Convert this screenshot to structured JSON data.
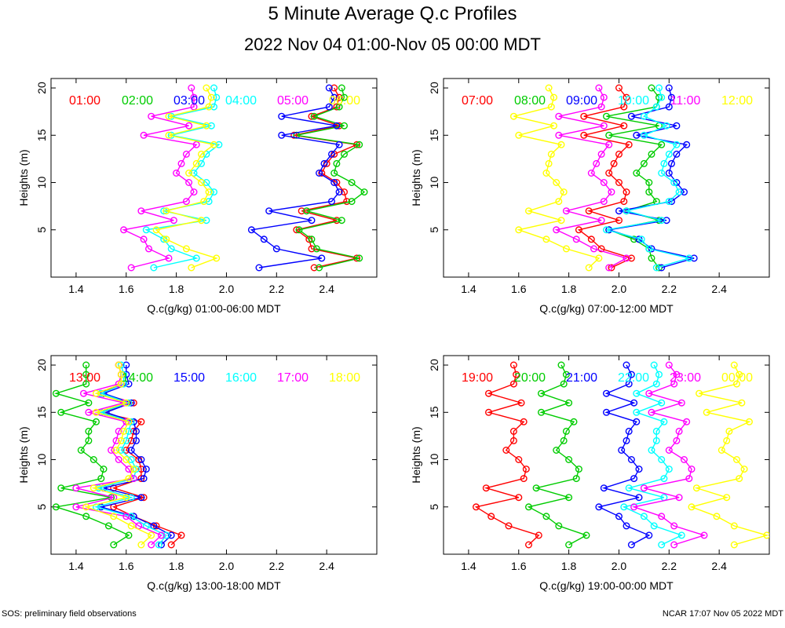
{
  "title": "5 Minute Average Q.c Profiles",
  "subtitle": "2022 Nov 04 01:00-Nov 05 00:00 MDT",
  "footer_left": "SOS: preliminary field observations",
  "footer_right": "NCAR 17:07 Nov 05 2022 MDT",
  "colors": [
    "#ff0000",
    "#00cc00",
    "#0000ff",
    "#00ffff",
    "#ff00ff",
    "#ffff00"
  ],
  "heights": [
    1,
    2,
    3,
    4,
    5,
    6,
    7,
    8,
    9,
    10,
    11,
    12,
    13,
    14,
    15,
    16,
    17,
    18,
    19,
    20
  ],
  "chart_data": [
    {
      "type": "line",
      "xlabel": "Q.c(g/kg) 01:00-06:00 MDT",
      "ylabel": "Heights (m)",
      "xlim": [
        1.3,
        2.6
      ],
      "ylim": [
        0,
        21
      ],
      "xticks": [
        "1.4",
        "1.6",
        "1.8",
        "2.0",
        "2.2",
        "2.4"
      ],
      "yticks": [
        "5",
        "10",
        "15",
        "20"
      ],
      "series": [
        {
          "name": "01:00",
          "values": [
            2.35,
            2.52,
            2.34,
            2.33,
            2.28,
            2.44,
            2.3,
            2.48,
            2.47,
            2.44,
            2.38,
            2.4,
            2.43,
            2.52,
            2.27,
            2.45,
            2.34,
            2.44,
            2.45,
            2.43
          ]
        },
        {
          "name": "02:00",
          "values": [
            2.37,
            2.53,
            2.36,
            2.34,
            2.29,
            2.46,
            2.32,
            2.5,
            2.55,
            2.5,
            2.43,
            2.44,
            2.47,
            2.53,
            2.28,
            2.47,
            2.35,
            2.45,
            2.47,
            2.46
          ]
        },
        {
          "name": "03:00",
          "values": [
            2.13,
            2.38,
            2.2,
            2.15,
            2.1,
            2.34,
            2.17,
            2.42,
            2.45,
            2.43,
            2.37,
            2.39,
            2.42,
            2.45,
            2.22,
            2.44,
            2.22,
            2.41,
            2.43,
            2.41
          ]
        },
        {
          "name": "04:00",
          "values": [
            1.71,
            1.88,
            1.78,
            1.75,
            1.68,
            1.92,
            1.75,
            1.93,
            1.95,
            1.92,
            1.87,
            1.9,
            1.92,
            1.97,
            1.78,
            1.94,
            1.78,
            1.95,
            1.96,
            1.95
          ]
        },
        {
          "name": "05:00",
          "values": [
            1.62,
            1.77,
            1.69,
            1.67,
            1.59,
            1.79,
            1.66,
            1.84,
            1.87,
            1.85,
            1.8,
            1.82,
            1.84,
            1.88,
            1.67,
            1.85,
            1.7,
            1.87,
            1.87,
            1.86
          ]
        },
        {
          "name": "06:00",
          "values": [
            1.86,
            1.96,
            1.84,
            1.76,
            1.72,
            1.9,
            1.76,
            1.91,
            1.93,
            1.9,
            1.85,
            1.88,
            1.9,
            1.95,
            1.77,
            1.92,
            1.77,
            1.93,
            1.94,
            1.92
          ]
        }
      ]
    },
    {
      "type": "line",
      "xlabel": "Q.c(g/kg) 07:00-12:00 MDT",
      "ylabel": "Heights (m)",
      "xlim": [
        1.3,
        2.6
      ],
      "ylim": [
        0,
        21
      ],
      "xticks": [
        "1.4",
        "1.6",
        "1.8",
        "2.0",
        "2.2",
        "2.4"
      ],
      "yticks": [
        "5",
        "10",
        "15",
        "20"
      ],
      "series": [
        {
          "name": "07:00",
          "values": [
            1.97,
            2.05,
            1.93,
            1.89,
            1.84,
            2.0,
            1.88,
            2.02,
            2.03,
            2.0,
            1.96,
            1.98,
            2.0,
            2.04,
            1.86,
            2.02,
            1.86,
            2.02,
            2.03,
            2.0
          ]
        },
        {
          "name": "08:00",
          "values": [
            2.16,
            2.13,
            2.12,
            2.06,
            1.96,
            2.16,
            2.03,
            2.15,
            2.12,
            2.12,
            2.07,
            2.1,
            2.13,
            2.17,
            1.96,
            2.16,
            1.95,
            2.15,
            2.16,
            2.13
          ]
        },
        {
          "name": "09:00",
          "values": [
            2.17,
            2.3,
            2.13,
            2.08,
            1.96,
            2.19,
            2.0,
            2.21,
            2.26,
            2.23,
            2.2,
            2.21,
            2.23,
            2.27,
            2.07,
            2.23,
            2.05,
            2.2,
            2.21,
            2.2
          ]
        },
        {
          "name": "10:00",
          "values": [
            2.15,
            2.28,
            2.12,
            2.09,
            1.95,
            2.17,
            2.03,
            2.2,
            2.24,
            2.22,
            2.17,
            2.18,
            2.2,
            2.23,
            2.1,
            2.19,
            2.1,
            2.15,
            2.17,
            2.16
          ]
        },
        {
          "name": "11:00",
          "values": [
            1.96,
            2.03,
            1.9,
            1.83,
            1.75,
            1.93,
            1.79,
            1.94,
            1.97,
            1.94,
            1.89,
            1.91,
            1.93,
            1.96,
            1.76,
            1.94,
            1.76,
            1.93,
            1.94,
            1.92
          ]
        },
        {
          "name": "12:00",
          "values": [
            1.88,
            1.92,
            1.79,
            1.71,
            1.6,
            1.77,
            1.64,
            1.76,
            1.78,
            1.75,
            1.71,
            1.72,
            1.73,
            1.77,
            1.6,
            1.74,
            1.58,
            1.73,
            1.74,
            1.72
          ]
        }
      ]
    },
    {
      "type": "line",
      "xlabel": "Q.c(g/kg) 13:00-18:00 MDT",
      "ylabel": "Heights (m)",
      "xlim": [
        1.3,
        2.6
      ],
      "ylim": [
        0,
        21
      ],
      "xticks": [
        "1.4",
        "1.6",
        "1.8",
        "2.0",
        "2.2",
        "2.4"
      ],
      "yticks": [
        "5",
        "10",
        "15",
        "20"
      ],
      "series": [
        {
          "name": "13:00",
          "values": [
            1.78,
            1.82,
            1.72,
            1.63,
            1.55,
            1.67,
            1.55,
            1.66,
            1.66,
            1.65,
            1.6,
            1.62,
            1.63,
            1.66,
            1.5,
            1.63,
            1.5,
            1.58,
            1.58,
            1.57
          ]
        },
        {
          "name": "14:00",
          "values": [
            1.55,
            1.61,
            1.53,
            1.44,
            1.32,
            1.54,
            1.34,
            1.5,
            1.51,
            1.47,
            1.42,
            1.45,
            1.45,
            1.48,
            1.34,
            1.45,
            1.32,
            1.44,
            1.44,
            1.44
          ]
        },
        {
          "name": "15:00",
          "values": [
            1.74,
            1.78,
            1.71,
            1.63,
            1.5,
            1.66,
            1.51,
            1.67,
            1.68,
            1.66,
            1.62,
            1.64,
            1.64,
            1.63,
            1.52,
            1.62,
            1.51,
            1.61,
            1.6,
            1.6
          ]
        },
        {
          "name": "16:00",
          "values": [
            1.73,
            1.76,
            1.68,
            1.62,
            1.48,
            1.62,
            1.49,
            1.63,
            1.64,
            1.62,
            1.58,
            1.6,
            1.61,
            1.62,
            1.5,
            1.61,
            1.5,
            1.59,
            1.59,
            1.58
          ]
        },
        {
          "name": "17:00",
          "values": [
            1.7,
            1.74,
            1.65,
            1.6,
            1.4,
            1.55,
            1.4,
            1.63,
            1.61,
            1.57,
            1.54,
            1.56,
            1.57,
            1.6,
            1.45,
            1.59,
            1.43,
            1.57,
            1.58,
            1.57
          ]
        },
        {
          "name": "18:00",
          "values": [
            1.66,
            1.7,
            1.62,
            1.55,
            1.44,
            1.6,
            1.47,
            1.61,
            1.63,
            1.6,
            1.56,
            1.58,
            1.59,
            1.61,
            1.48,
            1.6,
            1.48,
            1.58,
            1.58,
            1.57
          ]
        }
      ]
    },
    {
      "type": "line",
      "xlabel": "Q.c(g/kg) 19:00-00:00 MDT",
      "ylabel": "Heights (m)",
      "xlim": [
        1.3,
        2.6
      ],
      "ylim": [
        0,
        21
      ],
      "xticks": [
        "1.4",
        "1.6",
        "1.8",
        "2.0",
        "2.2",
        "2.4"
      ],
      "yticks": [
        "5",
        "10",
        "15",
        "20"
      ],
      "series": [
        {
          "name": "19:00",
          "values": [
            1.64,
            1.68,
            1.56,
            1.49,
            1.43,
            1.6,
            1.47,
            1.62,
            1.63,
            1.6,
            1.55,
            1.58,
            1.58,
            1.62,
            1.48,
            1.61,
            1.48,
            1.58,
            1.59,
            1.58
          ]
        },
        {
          "name": "20:00",
          "values": [
            1.8,
            1.87,
            1.76,
            1.71,
            1.64,
            1.8,
            1.67,
            1.83,
            1.84,
            1.8,
            1.75,
            1.78,
            1.79,
            1.82,
            1.69,
            1.8,
            1.69,
            1.78,
            1.79,
            1.77
          ]
        },
        {
          "name": "21:00",
          "values": [
            2.05,
            2.12,
            2.03,
            2.0,
            1.92,
            2.08,
            1.94,
            2.06,
            2.08,
            2.05,
            2.01,
            2.03,
            2.04,
            2.07,
            1.95,
            2.06,
            1.95,
            2.04,
            2.05,
            2.03
          ]
        },
        {
          "name": "22:00",
          "values": [
            2.17,
            2.25,
            2.14,
            2.1,
            2.02,
            2.18,
            2.04,
            2.18,
            2.2,
            2.17,
            2.13,
            2.15,
            2.15,
            2.18,
            2.07,
            2.17,
            2.07,
            2.15,
            2.16,
            2.14
          ]
        },
        {
          "name": "23:00",
          "values": [
            2.22,
            2.34,
            2.22,
            2.17,
            2.06,
            2.24,
            2.1,
            2.28,
            2.29,
            2.26,
            2.2,
            2.23,
            2.24,
            2.27,
            2.13,
            2.25,
            2.12,
            2.22,
            2.23,
            2.2
          ]
        },
        {
          "name": "00:00",
          "values": [
            2.46,
            2.59,
            2.46,
            2.39,
            2.29,
            2.43,
            2.31,
            2.48,
            2.5,
            2.47,
            2.41,
            2.43,
            2.44,
            2.52,
            2.35,
            2.49,
            2.32,
            2.47,
            2.48,
            2.46
          ]
        }
      ]
    }
  ]
}
